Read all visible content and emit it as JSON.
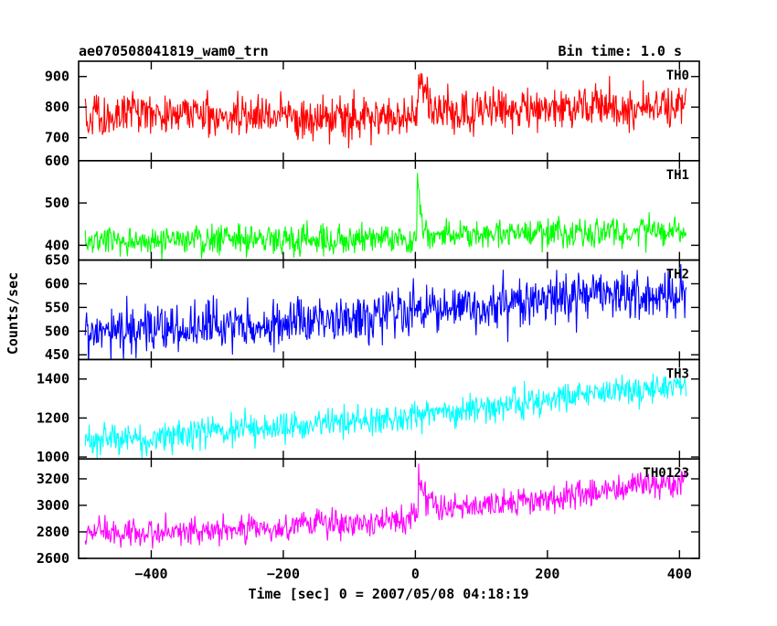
{
  "header": {
    "title": "ae070508041819_wam0_trn",
    "bin_time": "Bin time: 1.0 s"
  },
  "chart_data": {
    "type": "line",
    "x_range": [
      -510,
      430
    ],
    "x_ticks": [
      -400,
      -200,
      0,
      200,
      400
    ],
    "x_tick_labels": [
      "−400",
      "−200",
      "0",
      "200",
      "400"
    ],
    "xlabel": "Time [sec] 0 = 2007/05/08 04:18:19",
    "ylabel": "Counts/sec",
    "grid": false,
    "panels": [
      {
        "name": "TH0",
        "color": "#ff0000",
        "ylim": [
          625,
          950
        ],
        "y_ticks": [
          700,
          800,
          900
        ],
        "y_tick_labels": [
          "700",
          "800",
          "900"
        ],
        "trend": [
          [
            -500,
            760
          ],
          [
            -400,
            780
          ],
          [
            -300,
            770
          ],
          [
            -200,
            772
          ],
          [
            -100,
            770
          ],
          [
            -10,
            770
          ],
          [
            10,
            790
          ],
          [
            100,
            790
          ],
          [
            200,
            790
          ],
          [
            300,
            800
          ],
          [
            410,
            805
          ]
        ],
        "noise": 35,
        "burst": {
          "t": 5,
          "peak": 960,
          "decay": 8
        }
      },
      {
        "name": "TH1",
        "color": "#00ff00",
        "ylim": [
          365,
          600
        ],
        "y_ticks": [
          400,
          500,
          600
        ],
        "y_tick_labels": [
          "400",
          "500",
          "600"
        ],
        "trend": [
          [
            -500,
            410
          ],
          [
            -300,
            413
          ],
          [
            -100,
            410
          ],
          [
            0,
            415
          ],
          [
            100,
            425
          ],
          [
            300,
            430
          ],
          [
            410,
            435
          ]
        ],
        "noise": 18,
        "burst": {
          "t": 3,
          "peak": 600,
          "decay": 6
        }
      },
      {
        "name": "TH2",
        "color": "#0000ff",
        "ylim": [
          440,
          650
        ],
        "y_ticks": [
          450,
          500,
          550,
          600,
          650
        ],
        "y_tick_labels": [
          "450",
          "500",
          "550",
          "600",
          "650"
        ],
        "trend": [
          [
            -500,
            500
          ],
          [
            -300,
            510
          ],
          [
            -100,
            525
          ],
          [
            0,
            550
          ],
          [
            200,
            565
          ],
          [
            410,
            580
          ]
        ],
        "noise": 28,
        "burst": null
      },
      {
        "name": "TH3",
        "color": "#00ffff",
        "ylim": [
          990,
          1500
        ],
        "y_ticks": [
          1000,
          1200,
          1400
        ],
        "y_tick_labels": [
          "1000",
          "1200",
          "1400"
        ],
        "trend": [
          [
            -500,
            1080
          ],
          [
            -300,
            1130
          ],
          [
            -100,
            1180
          ],
          [
            0,
            1210
          ],
          [
            200,
            1290
          ],
          [
            410,
            1370
          ]
        ],
        "noise": 40,
        "burst": null
      },
      {
        "name": "TH0123",
        "color": "#ff00ff",
        "ylim": [
          2600,
          3350
        ],
        "y_ticks": [
          2600,
          2800,
          3000,
          3200
        ],
        "y_tick_labels": [
          "2600",
          "2800",
          "3000",
          "3200"
        ],
        "trend": [
          [
            -500,
            2790
          ],
          [
            -300,
            2810
          ],
          [
            -100,
            2860
          ],
          [
            -10,
            2890
          ],
          [
            10,
            3000
          ],
          [
            100,
            2990
          ],
          [
            200,
            3050
          ],
          [
            300,
            3110
          ],
          [
            410,
            3190
          ]
        ],
        "noise": 55,
        "burst": {
          "t": 5,
          "peak": 3300,
          "decay": 8
        }
      }
    ]
  }
}
